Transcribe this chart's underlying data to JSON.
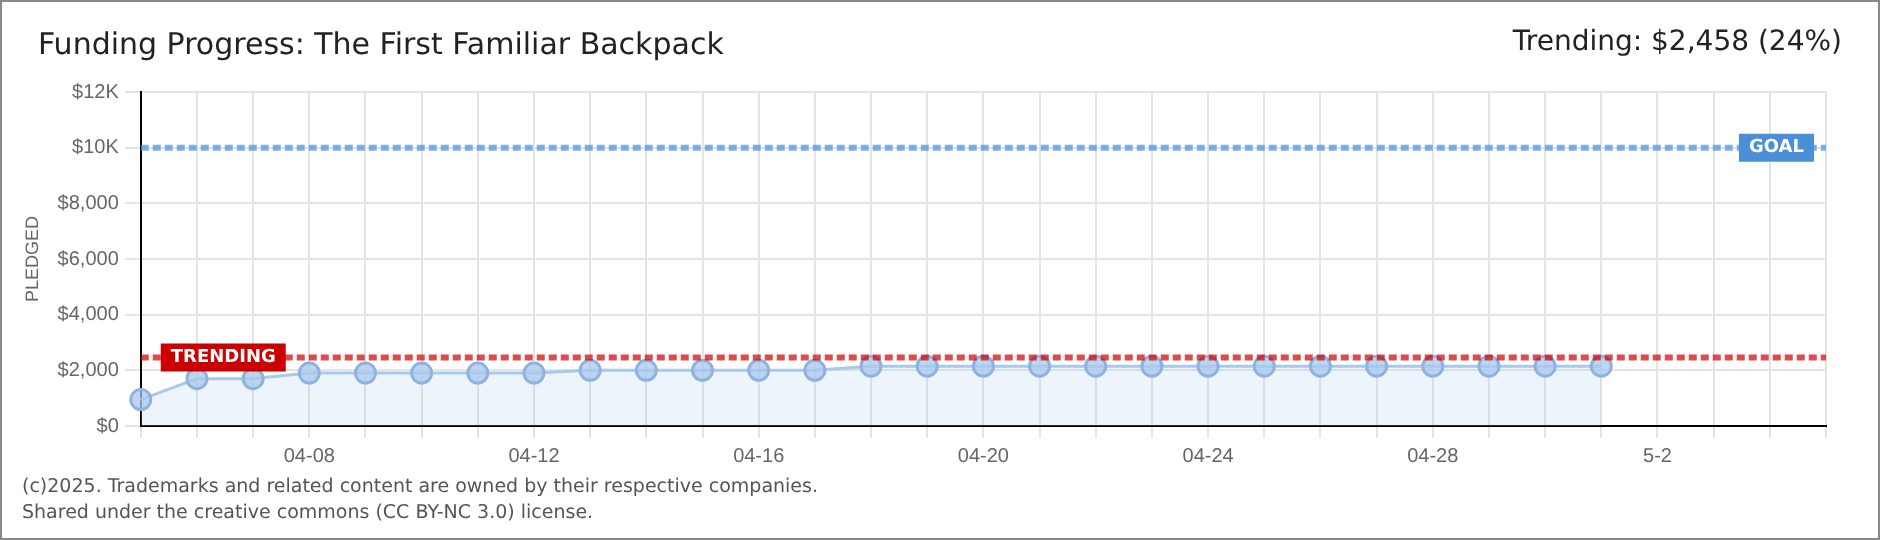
{
  "chart_data": {
    "type": "area",
    "title": "Funding Progress: The First Familiar Backpack",
    "ylabel": "PLEDGED",
    "categories": [
      null,
      null,
      null,
      "04-08",
      null,
      null,
      null,
      "04-12",
      null,
      null,
      null,
      "04-16",
      null,
      null,
      null,
      "04-20",
      null,
      null,
      null,
      "04-24",
      null,
      null,
      null,
      "04-28",
      null,
      null,
      null,
      "5-2",
      null,
      null,
      null
    ],
    "series": [
      {
        "color": "#a9c8ec",
        "values": [
          950,
          1700,
          1700,
          1900,
          1900,
          1900,
          1900,
          1900,
          2000,
          2000,
          2000,
          2000,
          2000,
          2150,
          2150,
          2150,
          2150,
          2150,
          2150,
          2150,
          2150,
          2150,
          2150,
          2150,
          2150,
          2150,
          2150,
          null,
          null,
          null,
          null
        ]
      }
    ],
    "ylim": [
      0,
      12000
    ],
    "yticks": [
      {
        "value": 0,
        "label": "$0"
      },
      {
        "value": 2000,
        "label": "$2,000"
      },
      {
        "value": 4000,
        "label": "$4,000"
      },
      {
        "value": 6000,
        "label": "$6,000"
      },
      {
        "value": 8000,
        "label": "$8,000"
      },
      {
        "value": 10000,
        "label": "$10K"
      },
      {
        "value": 12000,
        "label": "$12K"
      }
    ],
    "ref_lines": [
      {
        "axis": "y",
        "value": 10000,
        "label": "GOAL",
        "color": "#4a8fd8",
        "line_style": "dashed"
      },
      {
        "axis": "y",
        "value": 2458,
        "label": "TRENDING",
        "color": "#cc0000",
        "line_style": "dashed"
      }
    ],
    "grid": true,
    "marker": "circle",
    "legend": false,
    "annotations": [
      "Trending: $2,458 (24%)",
      "(c)2025. Trademarks and related content are owned by their respective companies.",
      "Shared under the creative commons (CC BY-NC 3.0) license."
    ]
  }
}
